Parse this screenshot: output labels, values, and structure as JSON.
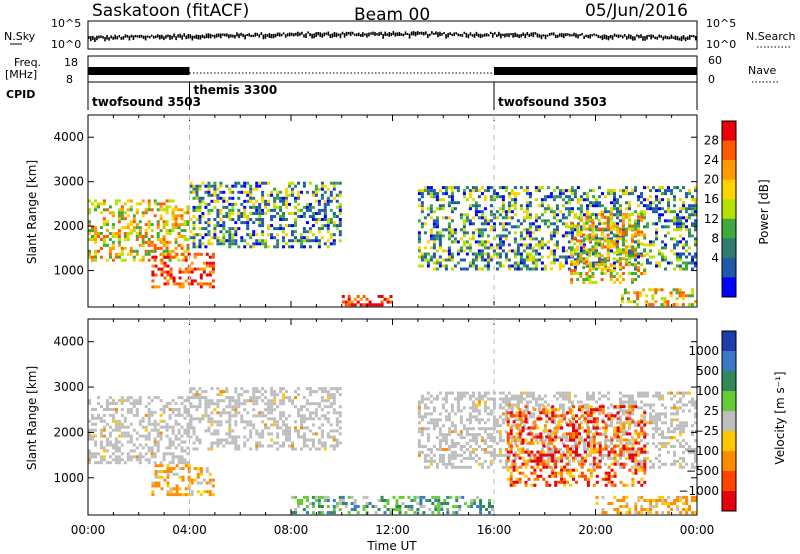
{
  "header": {
    "station": "Saskatoon (fitACF)",
    "beam": "Beam 00",
    "date": "05/Jun/2016"
  },
  "top_panels": {
    "nsky_label": "N.Sky",
    "nsky_ticks": [
      "10^5",
      "10^0"
    ],
    "nsearch_label": "N.Search",
    "nsearch_ticks": [
      "10^5",
      "10^0"
    ],
    "freq_label_1": "Freq.",
    "freq_label_2": "[MHz]",
    "freq_ticks": [
      "18",
      "8"
    ],
    "nave_label": "Nave",
    "nave_ticks": [
      "60",
      "0"
    ],
    "cpid_label": "CPID"
  },
  "cpid_segments": [
    {
      "label": "twofsound 3503",
      "start_hour": 0,
      "end_hour": 4
    },
    {
      "label": "themis 3300",
      "start_hour": 4,
      "end_hour": 16
    },
    {
      "label": "twofsound 3503",
      "start_hour": 16,
      "end_hour": 24
    }
  ],
  "colors": {
    "velocity_ground_scatter": "#bebebe"
  },
  "chart_data": [
    {
      "type": "heatmap",
      "panel": "power",
      "ylabel": "Slant Range [km]",
      "yticks": [
        1000,
        2000,
        3000,
        4000
      ],
      "ylim": [
        180,
        4500
      ],
      "xlim_hours": [
        0,
        24
      ],
      "colorbar": {
        "label": "Power [dB]",
        "ticks": [
          "28",
          "24",
          "20",
          "16",
          "12",
          "8",
          "4"
        ],
        "colors": [
          "#e8000b",
          "#ff5a00",
          "#ff9b00",
          "#ffd200",
          "#b4e100",
          "#3caa3c",
          "#2e7d6e",
          "#1f5aa8",
          "#0000ff"
        ]
      },
      "regions": [
        {
          "name": "early-band",
          "hours": [
            0,
            4
          ],
          "range_km": [
            1200,
            2600
          ],
          "level": "high"
        },
        {
          "name": "descending-trace",
          "hours": [
            2.5,
            5
          ],
          "range_km": [
            600,
            1400
          ],
          "level": "very-high"
        },
        {
          "name": "rising-trace",
          "hours": [
            4,
            10
          ],
          "range_km": [
            1500,
            3000
          ],
          "level": "low-medium"
        },
        {
          "name": "near-range-echo",
          "hours": [
            10,
            12
          ],
          "range_km": [
            200,
            450
          ],
          "level": "very-high"
        },
        {
          "name": "arc-trace",
          "hours": [
            13,
            24
          ],
          "range_km": [
            1000,
            2900
          ],
          "level": "low-medium"
        },
        {
          "name": "evening-patch",
          "hours": [
            19,
            22
          ],
          "range_km": [
            700,
            2300
          ],
          "level": "high"
        },
        {
          "name": "late-near-range",
          "hours": [
            21,
            24
          ],
          "range_km": [
            200,
            600
          ],
          "level": "high"
        }
      ]
    },
    {
      "type": "heatmap",
      "panel": "velocity",
      "ylabel": "Slant Range [km]",
      "yticks": [
        1000,
        2000,
        3000,
        4000
      ],
      "ylim": [
        180,
        4500
      ],
      "xlabel": "Time UT",
      "xticks": [
        "00:00",
        "04:00",
        "08:00",
        "12:00",
        "16:00",
        "20:00",
        "00:00"
      ],
      "xlim_hours": [
        0,
        24
      ],
      "colorbar": {
        "label": "Velocity [m s⁻¹]",
        "ticks": [
          "1000",
          "500",
          "100",
          "25",
          "−25",
          "−100",
          "−500",
          "−1000"
        ],
        "colors": [
          "#1e3caa",
          "#3c78c8",
          "#2e8b57",
          "#66cc33",
          "#bebebe",
          "#ffc800",
          "#ff8c00",
          "#ff4500",
          "#e8000b"
        ]
      },
      "regions": [
        {
          "name": "ground-scatter-band",
          "hours": [
            0,
            4
          ],
          "range_km": [
            1300,
            2800
          ],
          "value": "ground-scatter"
        },
        {
          "name": "negative-trace",
          "hours": [
            2.5,
            5
          ],
          "range_km": [
            600,
            1300
          ],
          "value": -200
        },
        {
          "name": "gs-rising-trace",
          "hours": [
            4,
            10
          ],
          "range_km": [
            1600,
            3000
          ],
          "value": "ground-scatter"
        },
        {
          "name": "near-range-mixed",
          "hours": [
            8,
            16
          ],
          "range_km": [
            200,
            600
          ],
          "value": 100
        },
        {
          "name": "gs-arc-trace",
          "hours": [
            13,
            24
          ],
          "range_km": [
            1200,
            2900
          ],
          "value": "ground-scatter"
        },
        {
          "name": "evening-negative",
          "hours": [
            16.5,
            22
          ],
          "range_km": [
            800,
            2600
          ],
          "value": -500
        },
        {
          "name": "late-near-range",
          "hours": [
            20,
            24
          ],
          "range_km": [
            200,
            600
          ],
          "value": -200
        }
      ]
    }
  ]
}
